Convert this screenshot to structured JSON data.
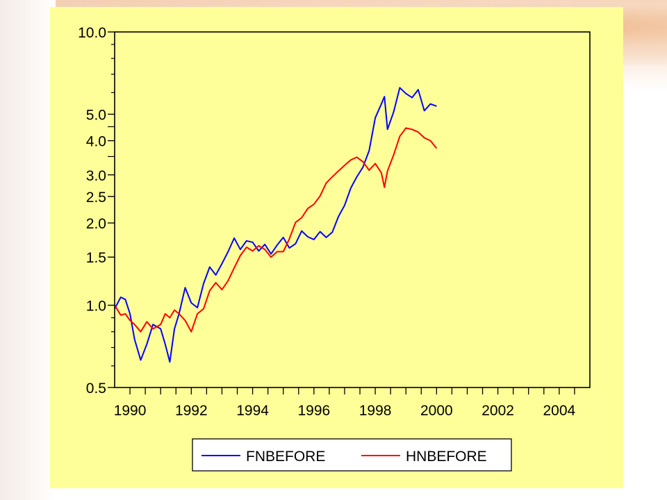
{
  "chart_data": {
    "type": "line",
    "y_scale": "log",
    "ylim": [
      0.5,
      10.0
    ],
    "xlim": [
      1989.5,
      2005
    ],
    "y_ticks": [
      {
        "value": 0.5,
        "label": "0.5"
      },
      {
        "value": 1.0,
        "label": "1.0"
      },
      {
        "value": 1.5,
        "label": "1.5"
      },
      {
        "value": 2.0,
        "label": "2.0"
      },
      {
        "value": 2.5,
        "label": "2.5"
      },
      {
        "value": 3.0,
        "label": "3.0"
      },
      {
        "value": 4.0,
        "label": "4.0"
      },
      {
        "value": 5.0,
        "label": "5.0"
      },
      {
        "value": 10.0,
        "label": "10.0"
      }
    ],
    "x_ticks": [
      "1990",
      "1992",
      "1994",
      "1996",
      "1998",
      "2000",
      "2002",
      "2004"
    ],
    "x_tick_values": [
      1990,
      1992,
      1994,
      1996,
      1998,
      2000,
      2002,
      2004
    ],
    "legend_position": "bottom",
    "series": [
      {
        "name": "FNBEFORE",
        "color": "#0000ff",
        "x": [
          1989.5,
          1989.7,
          1989.85,
          1990.0,
          1990.15,
          1990.35,
          1990.55,
          1990.75,
          1991.0,
          1991.15,
          1991.3,
          1991.45,
          1991.6,
          1991.8,
          1992.0,
          1992.2,
          1992.4,
          1992.6,
          1992.8,
          1993.0,
          1993.2,
          1993.4,
          1993.6,
          1993.8,
          1994.0,
          1994.2,
          1994.4,
          1994.6,
          1994.8,
          1995.0,
          1995.2,
          1995.4,
          1995.6,
          1995.8,
          1996.0,
          1996.2,
          1996.4,
          1996.6,
          1996.8,
          1997.0,
          1997.2,
          1997.4,
          1997.6,
          1997.8,
          1998.0,
          1998.2,
          1998.3,
          1998.4,
          1998.6,
          1998.8,
          1999.0,
          1999.2,
          1999.4,
          1999.6,
          1999.8,
          2000.0
        ],
        "y": [
          0.97,
          1.07,
          1.05,
          0.93,
          0.75,
          0.63,
          0.72,
          0.85,
          0.82,
          0.72,
          0.62,
          0.82,
          0.93,
          1.16,
          1.02,
          0.98,
          1.2,
          1.38,
          1.29,
          1.42,
          1.57,
          1.76,
          1.6,
          1.72,
          1.7,
          1.58,
          1.67,
          1.54,
          1.66,
          1.77,
          1.62,
          1.68,
          1.87,
          1.78,
          1.74,
          1.86,
          1.77,
          1.85,
          2.11,
          2.32,
          2.68,
          2.95,
          3.2,
          3.68,
          4.85,
          5.45,
          5.8,
          4.4,
          5.1,
          6.25,
          5.95,
          5.75,
          6.15,
          5.15,
          5.45,
          5.35
        ]
      },
      {
        "name": "HNBEFORE",
        "color": "#ff0000",
        "x": [
          1989.5,
          1989.7,
          1989.85,
          1990.0,
          1990.15,
          1990.35,
          1990.55,
          1990.75,
          1991.0,
          1991.15,
          1991.3,
          1991.45,
          1991.6,
          1991.8,
          1992.0,
          1992.2,
          1992.4,
          1992.6,
          1992.8,
          1993.0,
          1993.2,
          1993.4,
          1993.6,
          1993.8,
          1994.0,
          1994.2,
          1994.4,
          1994.6,
          1994.8,
          1995.0,
          1995.2,
          1995.4,
          1995.6,
          1995.8,
          1996.0,
          1996.2,
          1996.4,
          1996.6,
          1996.8,
          1997.0,
          1997.2,
          1997.4,
          1997.6,
          1997.8,
          1998.0,
          1998.2,
          1998.3,
          1998.4,
          1998.6,
          1998.8,
          1999.0,
          1999.2,
          1999.4,
          1999.6,
          1999.8,
          2000.0
        ],
        "y": [
          1.0,
          0.92,
          0.93,
          0.88,
          0.85,
          0.8,
          0.87,
          0.82,
          0.85,
          0.93,
          0.9,
          0.96,
          0.93,
          0.88,
          0.8,
          0.93,
          0.97,
          1.13,
          1.21,
          1.14,
          1.23,
          1.37,
          1.52,
          1.63,
          1.58,
          1.65,
          1.6,
          1.5,
          1.57,
          1.57,
          1.75,
          2.01,
          2.09,
          2.26,
          2.34,
          2.51,
          2.8,
          2.95,
          3.1,
          3.25,
          3.4,
          3.48,
          3.35,
          3.12,
          3.3,
          3.05,
          2.7,
          3.1,
          3.55,
          4.15,
          4.45,
          4.4,
          4.3,
          4.1,
          4.0,
          3.75
        ]
      }
    ]
  }
}
